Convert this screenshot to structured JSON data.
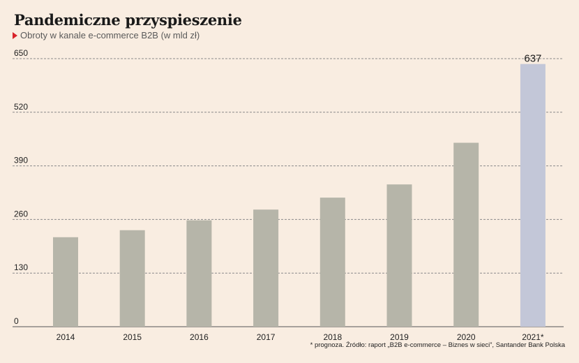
{
  "title": "Pandemiczne przyspieszenie",
  "subtitle": "Obroty w kanale e-commerce B2B (w mld zł)",
  "source": "* prognoza. Źródło: raport „B2B e-commerce – Biznes w sieci”, Santander Bank Polska",
  "colors": {
    "background": "#f9ede1",
    "bar": "#b6b5a9",
    "highlight_bar": "#c3c7d8",
    "marker": "#d8232a"
  },
  "chart_data": {
    "type": "bar",
    "title": "Pandemiczne przyspieszenie",
    "subtitle": "Obroty w kanale e-commerce B2B (w mld zł)",
    "categories": [
      "2014",
      "2015",
      "2016",
      "2017",
      "2018",
      "2019",
      "2020",
      "2021*"
    ],
    "values": [
      217,
      234,
      258,
      284,
      313,
      345,
      446,
      637
    ],
    "highlight_index": 7,
    "data_labels": {
      "2021*": "637"
    },
    "yticks": [
      0,
      130,
      260,
      390,
      520,
      650
    ],
    "ylim": [
      0,
      650
    ],
    "grid": true,
    "legend": "none"
  }
}
